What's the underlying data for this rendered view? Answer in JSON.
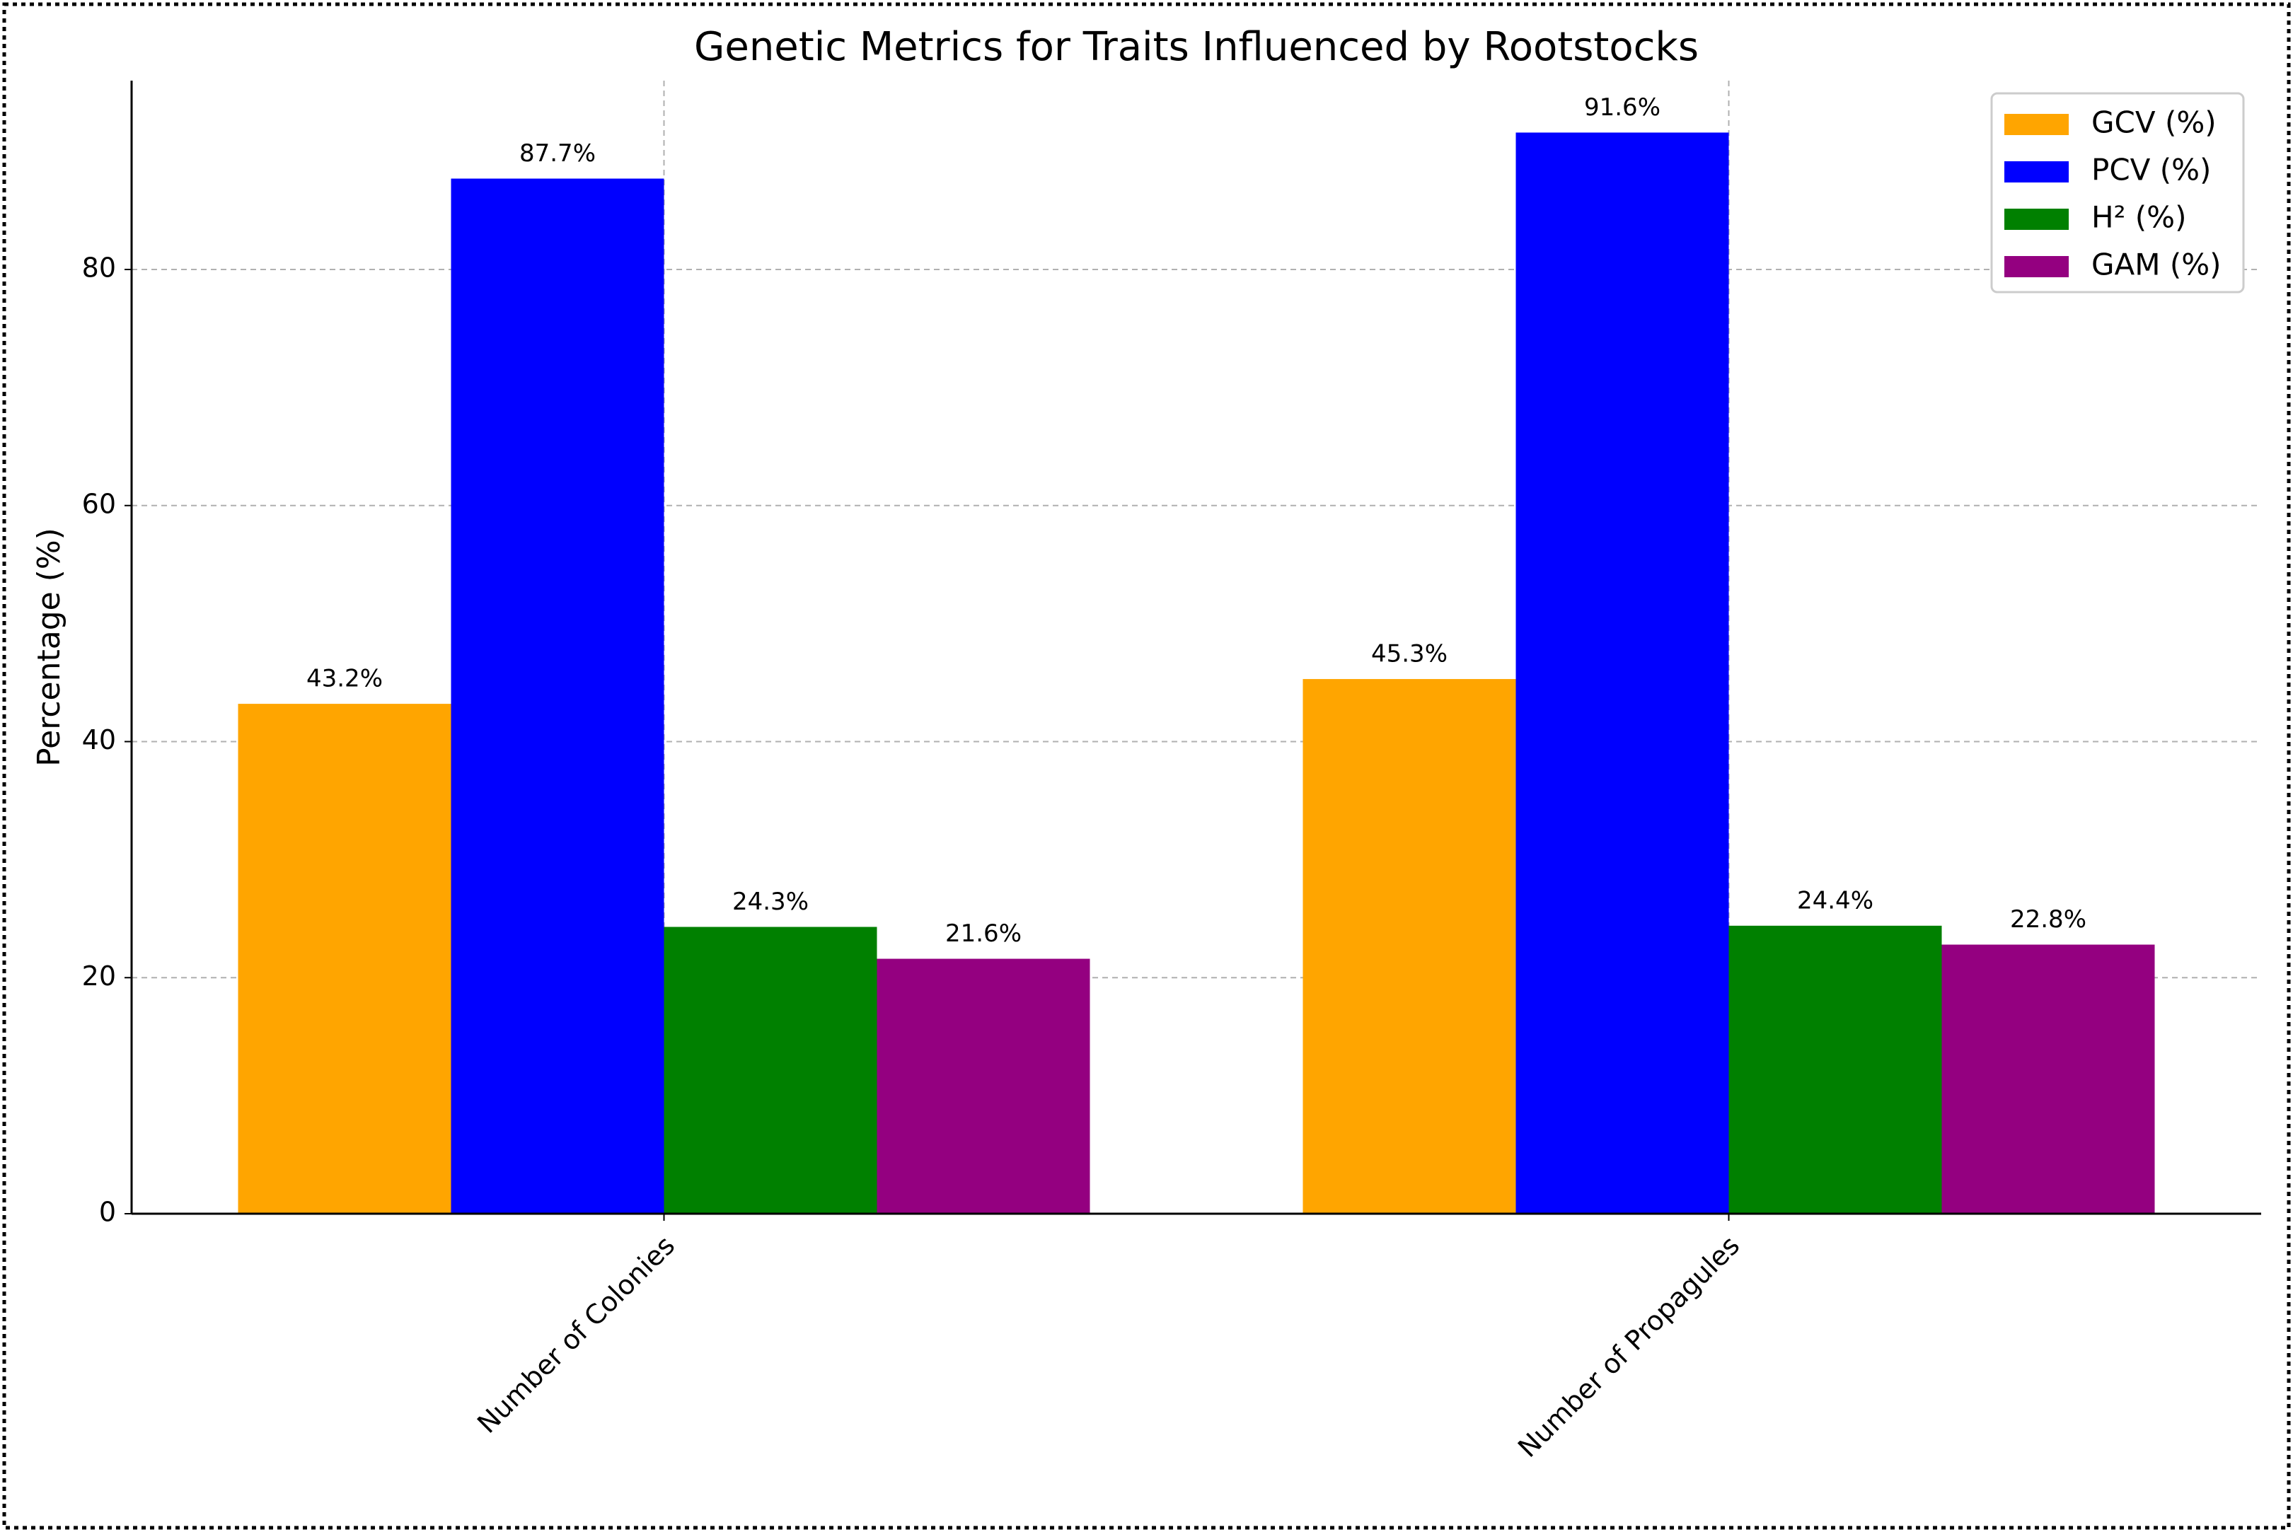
{
  "chart_data": {
    "type": "bar",
    "title": "Genetic Metrics for Traits Influenced by Rootstocks",
    "y_label": "Percentage (%)",
    "categories": [
      "Number of Colonies",
      "Number of Propagules"
    ],
    "series": [
      {
        "name": "GCV (%)",
        "color": "#FFA500",
        "values": [
          43.2,
          45.3
        ],
        "value_labels": [
          "43.2%",
          "45.3%"
        ]
      },
      {
        "name": "PCV (%)",
        "color": "#0000FF",
        "values": [
          87.7,
          91.6
        ],
        "value_labels": [
          "87.7%",
          "91.6%"
        ]
      },
      {
        "name": "H² (%)",
        "color": "#008000",
        "values": [
          24.3,
          24.4
        ],
        "value_labels": [
          "24.3%",
          "24.4%"
        ]
      },
      {
        "name": "GAM (%)",
        "color": "#940080",
        "values": [
          21.6,
          22.8
        ],
        "value_labels": [
          "21.6%",
          "22.8%"
        ]
      }
    ],
    "ylim": [
      0,
      96
    ],
    "yticks": [
      0,
      20,
      40,
      60,
      80
    ],
    "grid": true,
    "legend": "upper right"
  }
}
